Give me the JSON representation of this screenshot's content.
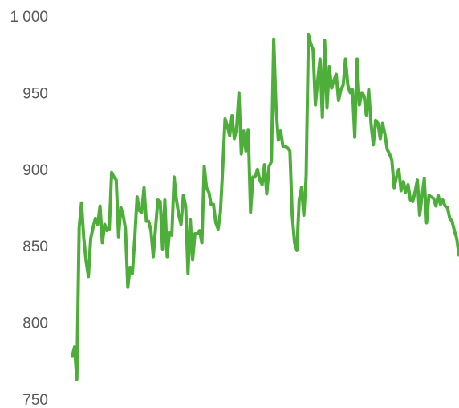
{
  "chart_data": {
    "type": "line",
    "title": "",
    "xlabel": "",
    "ylabel": "",
    "ylim": [
      750,
      1000
    ],
    "y_ticks": [
      750,
      800,
      850,
      900,
      950,
      1000
    ],
    "y_tick_labels": [
      "750",
      "800",
      "850",
      "900",
      "950",
      "1 000"
    ],
    "grid": false,
    "legend": "none",
    "series": [
      {
        "color": "#4daf3a",
        "values": [
          778,
          784,
          763,
          862,
          878,
          855,
          840,
          830,
          855,
          862,
          868,
          864,
          876,
          852,
          864,
          860,
          861,
          898,
          895,
          893,
          856,
          875,
          870,
          861,
          823,
          836,
          832,
          855,
          882,
          873,
          872,
          888,
          866,
          866,
          860,
          843,
          862,
          880,
          879,
          848,
          880,
          843,
          859,
          857,
          895,
          880,
          870,
          864,
          883,
          876,
          832,
          867,
          841,
          858,
          858,
          860,
          852,
          902,
          888,
          885,
          877,
          877,
          865,
          861,
          872,
          901,
          933,
          928,
          922,
          935,
          920,
          927,
          950,
          910,
          925,
          912,
          926,
          872,
          895,
          895,
          900,
          893,
          890,
          903,
          884,
          902,
          905,
          985,
          940,
          919,
          925,
          915,
          915,
          914,
          912,
          870,
          852,
          847,
          880,
          888,
          870,
          895,
          988,
          982,
          978,
          942,
          958,
          972,
          934,
          984,
          940,
          967,
          953,
          958,
          962,
          945,
          952,
          955,
          972,
          955,
          950,
          952,
          921,
          972,
          942,
          950,
          948,
          935,
          952,
          930,
          916,
          932,
          930,
          920,
          930,
          923,
          913,
          910,
          906,
          888,
          895,
          900,
          886,
          892,
          885,
          890,
          880,
          879,
          885,
          893,
          870,
          882,
          894,
          865,
          883,
          882,
          881,
          876,
          883,
          877,
          880,
          876,
          875,
          868,
          866,
          860,
          855,
          844
        ]
      }
    ]
  }
}
